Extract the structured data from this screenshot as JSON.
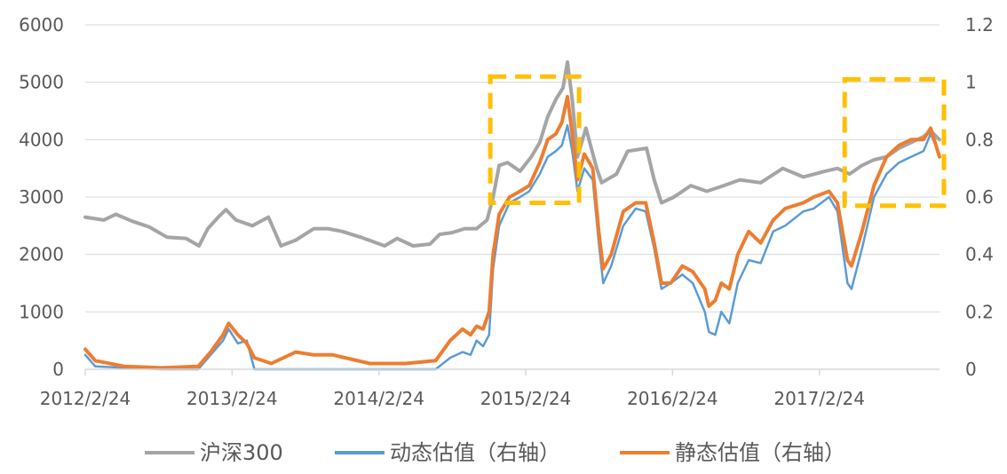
{
  "chart_data": {
    "type": "line",
    "x_ticks": [
      "2012/2/24",
      "2013/2/24",
      "2014/2/24",
      "2015/2/24",
      "2016/2/24",
      "2017/2/24"
    ],
    "x_range": [
      "2012-02-24",
      "2017-12-20"
    ],
    "y_left": {
      "ticks": [
        "0",
        "1000",
        "2000",
        "3000",
        "4000",
        "5000",
        "6000"
      ],
      "range": [
        0,
        6000
      ]
    },
    "y_right": {
      "ticks": [
        "0",
        "0.2",
        "0.4",
        "0.6",
        "0.8",
        "1",
        "1.2"
      ],
      "range": [
        0,
        1.2
      ]
    },
    "grid": "horizontal",
    "legend_position": "bottom",
    "series": [
      {
        "name": "沪深300",
        "axis": "left",
        "color": "#a5a5a5",
        "points": [
          [
            "2012-02-24",
            2650
          ],
          [
            "2012-04-10",
            2600
          ],
          [
            "2012-05-10",
            2700
          ],
          [
            "2012-06-20",
            2580
          ],
          [
            "2012-08-01",
            2480
          ],
          [
            "2012-09-15",
            2300
          ],
          [
            "2012-11-01",
            2280
          ],
          [
            "2012-12-03",
            2150
          ],
          [
            "2012-12-25",
            2450
          ],
          [
            "2013-01-20",
            2650
          ],
          [
            "2013-02-08",
            2780
          ],
          [
            "2013-03-05",
            2600
          ],
          [
            "2013-04-15",
            2500
          ],
          [
            "2013-05-25",
            2650
          ],
          [
            "2013-06-25",
            2150
          ],
          [
            "2013-08-01",
            2250
          ],
          [
            "2013-09-15",
            2450
          ],
          [
            "2013-10-20",
            2450
          ],
          [
            "2013-11-25",
            2400
          ],
          [
            "2014-01-10",
            2300
          ],
          [
            "2014-03-10",
            2150
          ],
          [
            "2014-04-10",
            2280
          ],
          [
            "2014-05-20",
            2150
          ],
          [
            "2014-07-01",
            2180
          ],
          [
            "2014-07-25",
            2350
          ],
          [
            "2014-08-25",
            2380
          ],
          [
            "2014-09-25",
            2450
          ],
          [
            "2014-10-25",
            2450
          ],
          [
            "2014-11-20",
            2600
          ],
          [
            "2014-12-05",
            3000
          ],
          [
            "2014-12-20",
            3550
          ],
          [
            "2015-01-10",
            3600
          ],
          [
            "2015-02-10",
            3450
          ],
          [
            "2015-03-10",
            3700
          ],
          [
            "2015-03-31",
            3950
          ],
          [
            "2015-04-20",
            4400
          ],
          [
            "2015-05-10",
            4700
          ],
          [
            "2015-05-28",
            4900
          ],
          [
            "2015-06-08",
            5350
          ],
          [
            "2015-06-20",
            4700
          ],
          [
            "2015-07-03",
            3700
          ],
          [
            "2015-07-24",
            4200
          ],
          [
            "2015-08-20",
            3500
          ],
          [
            "2015-09-01",
            3250
          ],
          [
            "2015-10-08",
            3400
          ],
          [
            "2015-11-05",
            3800
          ],
          [
            "2015-12-22",
            3850
          ],
          [
            "2016-01-10",
            3300
          ],
          [
            "2016-01-28",
            2900
          ],
          [
            "2016-02-28",
            3000
          ],
          [
            "2016-04-10",
            3200
          ],
          [
            "2016-05-20",
            3100
          ],
          [
            "2016-07-01",
            3200
          ],
          [
            "2016-08-10",
            3300
          ],
          [
            "2016-10-01",
            3250
          ],
          [
            "2016-11-25",
            3500
          ],
          [
            "2017-01-15",
            3350
          ],
          [
            "2017-03-10",
            3450
          ],
          [
            "2017-04-10",
            3500
          ],
          [
            "2017-05-10",
            3400
          ],
          [
            "2017-06-10",
            3550
          ],
          [
            "2017-07-10",
            3650
          ],
          [
            "2017-08-10",
            3700
          ],
          [
            "2017-09-10",
            3850
          ],
          [
            "2017-10-10",
            3950
          ],
          [
            "2017-11-10",
            4050
          ],
          [
            "2017-11-28",
            4150
          ],
          [
            "2017-12-20",
            4000
          ]
        ]
      },
      {
        "name": "动态估值（右轴）",
        "axis": "right",
        "color": "#5b9bd5",
        "points": [
          [
            "2012-02-24",
            0.05
          ],
          [
            "2012-03-20",
            0.01
          ],
          [
            "2012-06-01",
            0.005
          ],
          [
            "2012-09-01",
            0.0
          ],
          [
            "2012-12-01",
            0.0
          ],
          [
            "2013-01-01",
            0.05
          ],
          [
            "2013-02-01",
            0.1
          ],
          [
            "2013-02-15",
            0.14
          ],
          [
            "2013-03-10",
            0.09
          ],
          [
            "2013-04-01",
            0.1
          ],
          [
            "2013-04-20",
            0.0
          ],
          [
            "2013-08-01",
            0.0
          ],
          [
            "2013-11-01",
            0.0
          ],
          [
            "2014-02-01",
            0.0
          ],
          [
            "2014-05-01",
            0.0
          ],
          [
            "2014-07-15",
            0.0
          ],
          [
            "2014-08-20",
            0.04
          ],
          [
            "2014-09-20",
            0.06
          ],
          [
            "2014-10-10",
            0.05
          ],
          [
            "2014-10-25",
            0.1
          ],
          [
            "2014-11-10",
            0.08
          ],
          [
            "2014-11-25",
            0.12
          ],
          [
            "2014-12-05",
            0.35
          ],
          [
            "2014-12-20",
            0.5
          ],
          [
            "2015-01-15",
            0.58
          ],
          [
            "2015-02-10",
            0.6
          ],
          [
            "2015-03-05",
            0.62
          ],
          [
            "2015-03-31",
            0.68
          ],
          [
            "2015-04-20",
            0.74
          ],
          [
            "2015-05-10",
            0.76
          ],
          [
            "2015-05-25",
            0.78
          ],
          [
            "2015-06-08",
            0.85
          ],
          [
            "2015-06-20",
            0.76
          ],
          [
            "2015-07-03",
            0.62
          ],
          [
            "2015-07-20",
            0.7
          ],
          [
            "2015-08-10",
            0.66
          ],
          [
            "2015-08-25",
            0.44
          ],
          [
            "2015-09-05",
            0.3
          ],
          [
            "2015-09-25",
            0.36
          ],
          [
            "2015-10-25",
            0.5
          ],
          [
            "2015-11-25",
            0.56
          ],
          [
            "2015-12-20",
            0.55
          ],
          [
            "2016-01-10",
            0.42
          ],
          [
            "2016-01-28",
            0.28
          ],
          [
            "2016-02-20",
            0.3
          ],
          [
            "2016-03-20",
            0.33
          ],
          [
            "2016-04-15",
            0.3
          ],
          [
            "2016-05-15",
            0.2
          ],
          [
            "2016-05-25",
            0.13
          ],
          [
            "2016-06-10",
            0.12
          ],
          [
            "2016-06-25",
            0.2
          ],
          [
            "2016-07-15",
            0.16
          ],
          [
            "2016-08-05",
            0.3
          ],
          [
            "2016-09-01",
            0.38
          ],
          [
            "2016-10-01",
            0.37
          ],
          [
            "2016-11-01",
            0.48
          ],
          [
            "2016-12-01",
            0.5
          ],
          [
            "2017-01-15",
            0.55
          ],
          [
            "2017-02-10",
            0.56
          ],
          [
            "2017-03-20",
            0.6
          ],
          [
            "2017-04-10",
            0.55
          ],
          [
            "2017-05-05",
            0.3
          ],
          [
            "2017-05-15",
            0.28
          ],
          [
            "2017-06-10",
            0.42
          ],
          [
            "2017-07-10",
            0.6
          ],
          [
            "2017-08-10",
            0.68
          ],
          [
            "2017-09-10",
            0.72
          ],
          [
            "2017-10-10",
            0.74
          ],
          [
            "2017-11-10",
            0.76
          ],
          [
            "2017-11-28",
            0.82
          ],
          [
            "2017-12-20",
            0.75
          ]
        ]
      },
      {
        "name": "静态估值（右轴）",
        "axis": "right",
        "color": "#ed7d31",
        "points": [
          [
            "2012-02-24",
            0.07
          ],
          [
            "2012-03-20",
            0.03
          ],
          [
            "2012-06-01",
            0.01
          ],
          [
            "2012-09-01",
            0.005
          ],
          [
            "2012-12-01",
            0.01
          ],
          [
            "2013-01-01",
            0.06
          ],
          [
            "2013-02-01",
            0.12
          ],
          [
            "2013-02-15",
            0.16
          ],
          [
            "2013-03-10",
            0.12
          ],
          [
            "2013-04-01",
            0.09
          ],
          [
            "2013-04-20",
            0.04
          ],
          [
            "2013-06-01",
            0.02
          ],
          [
            "2013-08-01",
            0.06
          ],
          [
            "2013-09-15",
            0.05
          ],
          [
            "2013-11-01",
            0.05
          ],
          [
            "2014-02-01",
            0.02
          ],
          [
            "2014-05-01",
            0.02
          ],
          [
            "2014-07-15",
            0.03
          ],
          [
            "2014-08-20",
            0.1
          ],
          [
            "2014-09-20",
            0.14
          ],
          [
            "2014-10-10",
            0.12
          ],
          [
            "2014-10-25",
            0.15
          ],
          [
            "2014-11-10",
            0.14
          ],
          [
            "2014-11-25",
            0.2
          ],
          [
            "2014-12-05",
            0.4
          ],
          [
            "2014-12-20",
            0.54
          ],
          [
            "2015-01-15",
            0.6
          ],
          [
            "2015-02-10",
            0.62
          ],
          [
            "2015-03-05",
            0.64
          ],
          [
            "2015-03-31",
            0.72
          ],
          [
            "2015-04-20",
            0.8
          ],
          [
            "2015-05-10",
            0.82
          ],
          [
            "2015-05-25",
            0.86
          ],
          [
            "2015-06-08",
            0.95
          ],
          [
            "2015-06-20",
            0.82
          ],
          [
            "2015-07-03",
            0.66
          ],
          [
            "2015-07-20",
            0.75
          ],
          [
            "2015-08-10",
            0.7
          ],
          [
            "2015-08-25",
            0.48
          ],
          [
            "2015-09-05",
            0.35
          ],
          [
            "2015-09-25",
            0.4
          ],
          [
            "2015-10-25",
            0.55
          ],
          [
            "2015-11-25",
            0.58
          ],
          [
            "2015-12-20",
            0.58
          ],
          [
            "2016-01-10",
            0.44
          ],
          [
            "2016-01-28",
            0.3
          ],
          [
            "2016-02-20",
            0.3
          ],
          [
            "2016-03-20",
            0.36
          ],
          [
            "2016-04-15",
            0.34
          ],
          [
            "2016-05-15",
            0.28
          ],
          [
            "2016-05-25",
            0.22
          ],
          [
            "2016-06-10",
            0.24
          ],
          [
            "2016-06-25",
            0.3
          ],
          [
            "2016-07-15",
            0.28
          ],
          [
            "2016-08-05",
            0.4
          ],
          [
            "2016-09-01",
            0.48
          ],
          [
            "2016-10-01",
            0.44
          ],
          [
            "2016-11-01",
            0.52
          ],
          [
            "2016-12-01",
            0.56
          ],
          [
            "2017-01-15",
            0.58
          ],
          [
            "2017-02-10",
            0.6
          ],
          [
            "2017-03-20",
            0.62
          ],
          [
            "2017-04-10",
            0.58
          ],
          [
            "2017-05-05",
            0.38
          ],
          [
            "2017-05-15",
            0.36
          ],
          [
            "2017-06-10",
            0.48
          ],
          [
            "2017-07-10",
            0.64
          ],
          [
            "2017-08-10",
            0.74
          ],
          [
            "2017-09-10",
            0.78
          ],
          [
            "2017-10-10",
            0.8
          ],
          [
            "2017-11-10",
            0.8
          ],
          [
            "2017-11-28",
            0.84
          ],
          [
            "2017-12-20",
            0.74
          ]
        ]
      }
    ],
    "annotations": [
      {
        "type": "dashed-box",
        "color": "#ffc000",
        "x": [
          "2014-11-28",
          "2015-07-07"
        ],
        "y_right": [
          0.58,
          1.02
        ]
      },
      {
        "type": "dashed-box",
        "color": "#ffc000",
        "x": [
          "2017-04-28",
          "2017-12-31"
        ],
        "y_right": [
          0.57,
          1.01
        ]
      }
    ]
  }
}
